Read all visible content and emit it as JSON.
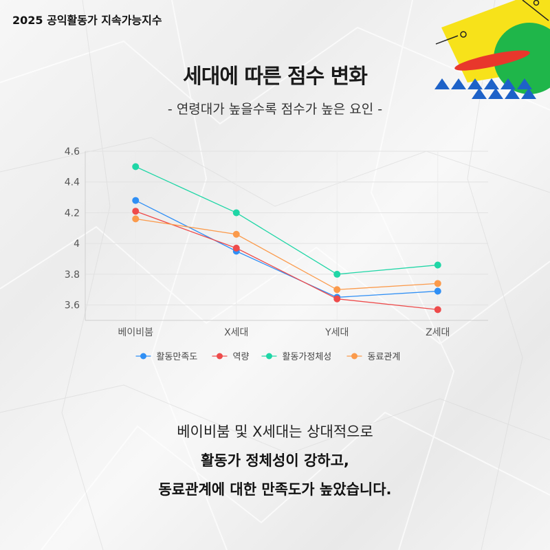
{
  "header": {
    "brand": "2025 공익활동가 지속가능지수"
  },
  "title": "세대에 따른 점수 변화",
  "subtitle": "- 연령대가 높을수록 점수가 높은 요인 -",
  "chart_data": {
    "type": "line",
    "categories": [
      "베이비붐",
      "X세대",
      "Y세대",
      "Z세대"
    ],
    "yticks": [
      "3.6",
      "3.8",
      "4",
      "4.2",
      "4.4",
      "4.6"
    ],
    "ylim": [
      3.5,
      4.6
    ],
    "grid": true,
    "legend_position": "bottom",
    "series": [
      {
        "name": "활동만족도",
        "color": "#2f8ff5",
        "values": [
          4.28,
          3.95,
          3.65,
          3.69
        ]
      },
      {
        "name": "역량",
        "color": "#ee4b4b",
        "values": [
          4.21,
          3.97,
          3.64,
          3.57
        ]
      },
      {
        "name": "활동가정체성",
        "color": "#1fd6a6",
        "values": [
          4.5,
          4.2,
          3.8,
          3.86
        ]
      },
      {
        "name": "동료관계",
        "color": "#fb9a4b",
        "values": [
          4.16,
          4.06,
          3.7,
          3.74
        ]
      }
    ]
  },
  "summary": {
    "line1": "베이비붐 및 X세대는 상대적으로",
    "line2": "활동가 정체성이 강하고,",
    "line3": "동료관계에 대한 만족도가 높았습니다."
  },
  "colors": {
    "deco_yellow": "#f7e21a",
    "deco_green": "#1fb64a",
    "deco_red": "#e8372c",
    "deco_blue": "#1e62c8"
  }
}
